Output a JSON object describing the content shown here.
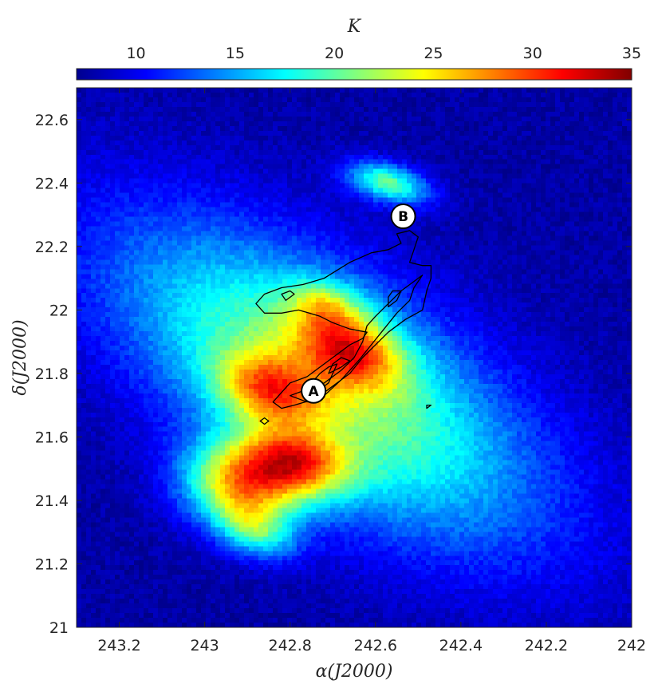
{
  "chart_data": {
    "type": "heatmap",
    "title": "",
    "colorbar": {
      "label": "K",
      "range": [
        7,
        35
      ],
      "ticks": [
        10,
        15,
        20,
        25,
        30,
        35
      ],
      "colormap": "jet",
      "orientation": "horizontal",
      "position": "top"
    },
    "xlabel": "α(J2000)",
    "ylabel": "δ(J2000)",
    "xlim": [
      243.3,
      242.0
    ],
    "ylim": [
      21.0,
      22.7
    ],
    "xticks": [
      243.2,
      243.0,
      242.8,
      242.6,
      242.4,
      242.2,
      242.0
    ],
    "xtick_labels": [
      "243.2",
      "243",
      "242.8",
      "242.6",
      "242.4",
      "242.2",
      "242"
    ],
    "yticks": [
      21.0,
      21.2,
      21.4,
      21.6,
      21.8,
      22.0,
      22.2,
      22.4,
      22.6
    ],
    "ytick_labels": [
      "21",
      "21.2",
      "21.4",
      "21.6",
      "21.8",
      "22",
      "22.2",
      "22.4",
      "22.6"
    ],
    "grid": false,
    "features": [
      {
        "center": [
          242.91,
          21.45
        ],
        "sigma": [
          0.1,
          0.09
        ],
        "angle_deg": 45,
        "peak": 17
      },
      {
        "center": [
          242.78,
          21.52
        ],
        "sigma": [
          0.09,
          0.07
        ],
        "angle_deg": 30,
        "peak": 13
      },
      {
        "center": [
          242.85,
          21.75
        ],
        "sigma": [
          0.09,
          0.07
        ],
        "angle_deg": 35,
        "peak": 11
      },
      {
        "center": [
          242.66,
          21.88
        ],
        "sigma": [
          0.1,
          0.07
        ],
        "angle_deg": 45,
        "peak": 13
      },
      {
        "center": [
          242.57,
          22.4
        ],
        "sigma": [
          0.07,
          0.04
        ],
        "angle_deg": 25,
        "peak": 12
      },
      {
        "center": [
          242.88,
          21.3
        ],
        "sigma": [
          0.07,
          0.05
        ],
        "angle_deg": 40,
        "peak": 8
      },
      {
        "center": [
          242.72,
          22.02
        ],
        "sigma": [
          0.06,
          0.05
        ],
        "angle_deg": 30,
        "peak": 6
      }
    ],
    "ridge": {
      "center": [
        242.72,
        21.77
      ],
      "sigma": [
        0.43,
        0.2
      ],
      "angle_deg": 45,
      "peak": 14,
      "background": 8
    },
    "markers": [
      {
        "label": "A",
        "ra": 242.745,
        "dec": 21.745
      },
      {
        "label": "B",
        "ra": 242.535,
        "dec": 22.295
      }
    ],
    "contours": [
      {
        "name": "outer",
        "points": [
          [
            242.84,
            21.71
          ],
          [
            242.82,
            21.74
          ],
          [
            242.8,
            21.77
          ],
          [
            242.76,
            21.79
          ],
          [
            242.73,
            21.82
          ],
          [
            242.69,
            21.86
          ],
          [
            242.66,
            21.89
          ],
          [
            242.63,
            21.91
          ],
          [
            242.62,
            21.93
          ],
          [
            242.66,
            21.94
          ],
          [
            242.7,
            21.96
          ],
          [
            242.73,
            21.98
          ],
          [
            242.78,
            22.0
          ],
          [
            242.82,
            21.99
          ],
          [
            242.86,
            21.99
          ],
          [
            242.88,
            22.02
          ],
          [
            242.86,
            22.05
          ],
          [
            242.82,
            22.07
          ],
          [
            242.77,
            22.08
          ],
          [
            242.72,
            22.1
          ],
          [
            242.66,
            22.15
          ],
          [
            242.61,
            22.18
          ],
          [
            242.57,
            22.19
          ],
          [
            242.54,
            22.21
          ],
          [
            242.55,
            22.24
          ],
          [
            242.52,
            22.25
          ],
          [
            242.5,
            22.23
          ],
          [
            242.51,
            22.19
          ],
          [
            242.52,
            22.15
          ],
          [
            242.49,
            22.14
          ],
          [
            242.47,
            22.14
          ],
          [
            242.47,
            22.1
          ],
          [
            242.48,
            22.06
          ],
          [
            242.49,
            22.0
          ],
          [
            242.53,
            21.97
          ],
          [
            242.57,
            21.93
          ],
          [
            242.6,
            21.89
          ],
          [
            242.63,
            21.85
          ],
          [
            242.66,
            21.8
          ],
          [
            242.7,
            21.76
          ],
          [
            242.74,
            21.72
          ],
          [
            242.79,
            21.7
          ],
          [
            242.82,
            21.69
          ],
          [
            242.84,
            21.71
          ]
        ]
      },
      {
        "name": "middle",
        "points": [
          [
            242.8,
            21.73
          ],
          [
            242.76,
            21.75
          ],
          [
            242.72,
            21.77
          ],
          [
            242.68,
            21.81
          ],
          [
            242.65,
            21.85
          ],
          [
            242.63,
            21.9
          ],
          [
            242.62,
            21.95
          ],
          [
            242.6,
            21.98
          ],
          [
            242.57,
            22.02
          ],
          [
            242.54,
            22.06
          ],
          [
            242.51,
            22.09
          ],
          [
            242.49,
            22.11
          ],
          [
            242.51,
            22.07
          ],
          [
            242.52,
            22.03
          ],
          [
            242.55,
            21.99
          ],
          [
            242.58,
            21.94
          ],
          [
            242.61,
            21.89
          ],
          [
            242.64,
            21.84
          ],
          [
            242.68,
            21.78
          ],
          [
            242.72,
            21.73
          ],
          [
            242.76,
            21.71
          ],
          [
            242.8,
            21.73
          ]
        ]
      },
      {
        "name": "inner1",
        "points": [
          [
            242.77,
            21.73
          ],
          [
            242.74,
            21.74
          ],
          [
            242.71,
            21.77
          ],
          [
            242.7,
            21.8
          ],
          [
            242.69,
            21.83
          ],
          [
            242.71,
            21.82
          ],
          [
            242.73,
            21.8
          ],
          [
            242.75,
            21.77
          ],
          [
            242.77,
            21.73
          ]
        ]
      },
      {
        "name": "inner2",
        "points": [
          [
            242.71,
            21.8
          ],
          [
            242.68,
            21.82
          ],
          [
            242.66,
            21.84
          ],
          [
            242.68,
            21.85
          ],
          [
            242.7,
            21.83
          ],
          [
            242.71,
            21.8
          ]
        ]
      },
      {
        "name": "inner3",
        "points": [
          [
            242.57,
            22.01
          ],
          [
            242.55,
            22.03
          ],
          [
            242.54,
            22.06
          ],
          [
            242.56,
            22.06
          ],
          [
            242.57,
            22.04
          ],
          [
            242.57,
            22.01
          ]
        ]
      },
      {
        "name": "blob-west",
        "points": [
          [
            242.81,
            22.03
          ],
          [
            242.79,
            22.05
          ],
          [
            242.8,
            22.06
          ],
          [
            242.82,
            22.05
          ],
          [
            242.81,
            22.03
          ]
        ]
      },
      {
        "name": "blob-small",
        "points": [
          [
            242.86,
            21.64
          ],
          [
            242.85,
            21.65
          ],
          [
            242.86,
            21.66
          ],
          [
            242.87,
            21.65
          ],
          [
            242.86,
            21.64
          ]
        ]
      },
      {
        "name": "blob-east",
        "points": [
          [
            242.48,
            21.69
          ],
          [
            242.47,
            21.7
          ],
          [
            242.48,
            21.7
          ],
          [
            242.48,
            21.69
          ]
        ]
      }
    ]
  }
}
